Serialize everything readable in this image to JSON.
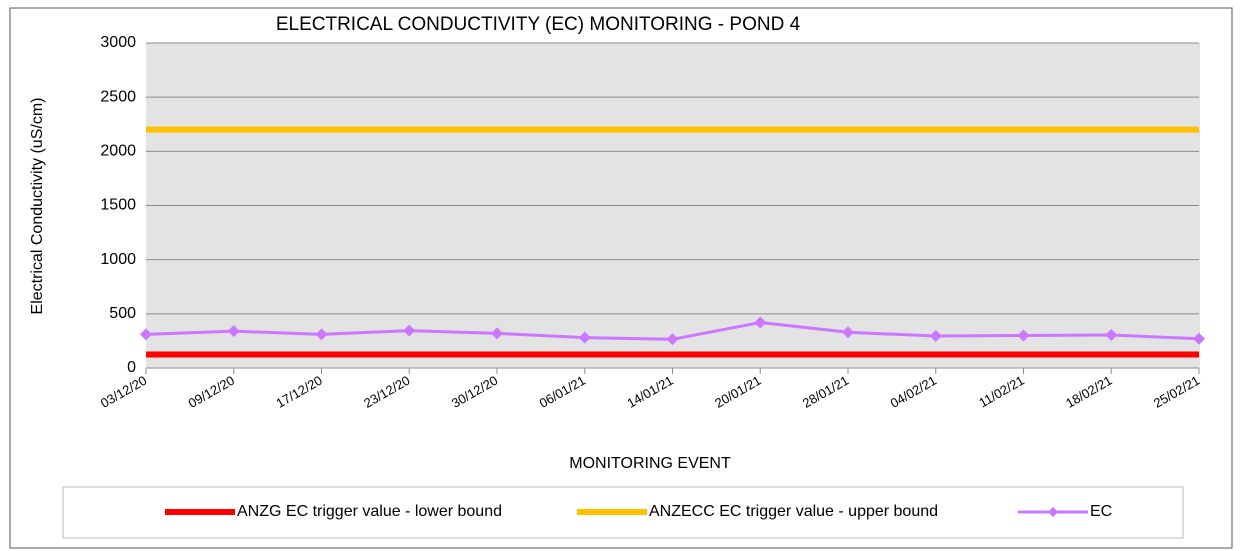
{
  "chart_data": {
    "type": "line",
    "title": "ELECTRICAL CONDUCTIVITY (EC) MONITORING - POND 4",
    "x_label": "MONITORING EVENT",
    "y_label": "Electrical Conductivity (uS/cm)",
    "categories": [
      "03/12/20",
      "09/12/20",
      "17/12/20",
      "23/12/20",
      "30/12/20",
      "06/01/21",
      "14/01/21",
      "20/01/21",
      "28/01/21",
      "04/02/21",
      "11/02/21",
      "18/02/21",
      "25/02/21"
    ],
    "series": [
      {
        "name": "ANZG EC trigger value - lower bound",
        "color": "#ff0000",
        "values": [
          125,
          125,
          125,
          125,
          125,
          125,
          125,
          125,
          125,
          125,
          125,
          125,
          125
        ]
      },
      {
        "name": "ANZECC EC trigger value - upper bound",
        "color": "#ffc000",
        "values": [
          2200,
          2200,
          2200,
          2200,
          2200,
          2200,
          2200,
          2200,
          2200,
          2200,
          2200,
          2200,
          2200
        ]
      },
      {
        "name": "EC",
        "color": "#cc77ff",
        "marker": "diamond",
        "values": [
          310,
          340,
          310,
          345,
          320,
          280,
          265,
          420,
          330,
          295,
          300,
          305,
          270
        ]
      }
    ],
    "ylim": [
      0,
      3000
    ],
    "yticks": [
      0,
      500,
      1000,
      1500,
      2000,
      2500,
      3000
    ],
    "grid": true,
    "legend": "bottom"
  }
}
